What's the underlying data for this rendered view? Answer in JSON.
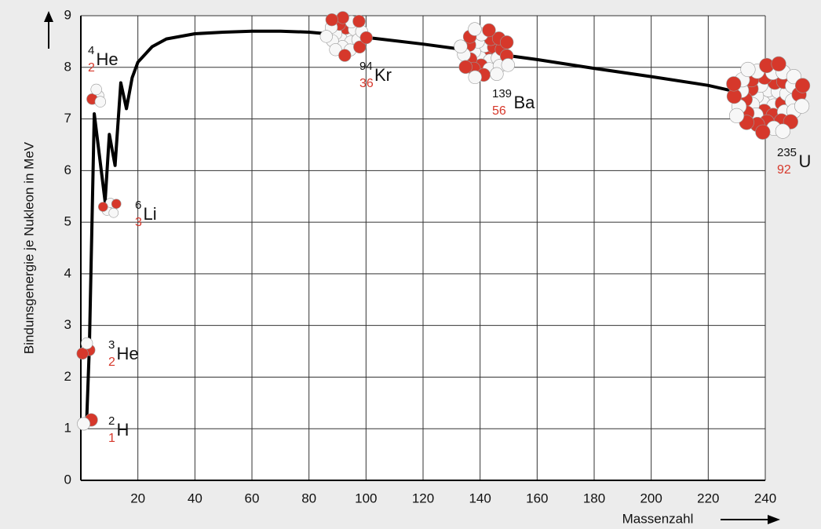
{
  "chart_data": {
    "type": "line",
    "y_label": "Bindunsgenergie je Nukleon in MeV",
    "x_label": "Massenzahl",
    "x": [
      2,
      3,
      4.7,
      8.5,
      10,
      12,
      14,
      16,
      18,
      20,
      25,
      30,
      40,
      50,
      60,
      70,
      80,
      90,
      100,
      120,
      140,
      160,
      180,
      200,
      220,
      228
    ],
    "values": [
      1.1,
      2.6,
      7.1,
      5.4,
      6.7,
      6.1,
      7.7,
      7.2,
      7.8,
      8.1,
      8.4,
      8.55,
      8.65,
      8.68,
      8.7,
      8.7,
      8.68,
      8.63,
      8.58,
      8.45,
      8.3,
      8.15,
      7.98,
      7.82,
      7.65,
      7.55
    ],
    "color": "#000000",
    "xlim": [
      0,
      240
    ],
    "xticks": [
      20,
      40,
      60,
      80,
      100,
      120,
      140,
      160,
      180,
      200,
      220,
      240
    ],
    "ylim": [
      0,
      9
    ],
    "yticks": [
      0,
      1,
      2,
      3,
      4,
      5,
      6,
      7,
      8,
      9
    ],
    "grid": true,
    "annotations": [
      {
        "mass": "2",
        "z": "1",
        "symbol": "H"
      },
      {
        "mass": "3",
        "z": "2",
        "symbol": "He"
      },
      {
        "mass": "4",
        "z": "2",
        "symbol": "He"
      },
      {
        "mass": "6",
        "z": "3",
        "symbol": "Li"
      },
      {
        "mass": "94",
        "z": "36",
        "symbol": "Kr"
      },
      {
        "mass": "139",
        "z": "56",
        "symbol": "Ba"
      },
      {
        "mass": "235",
        "z": "92",
        "symbol": "U"
      }
    ]
  }
}
